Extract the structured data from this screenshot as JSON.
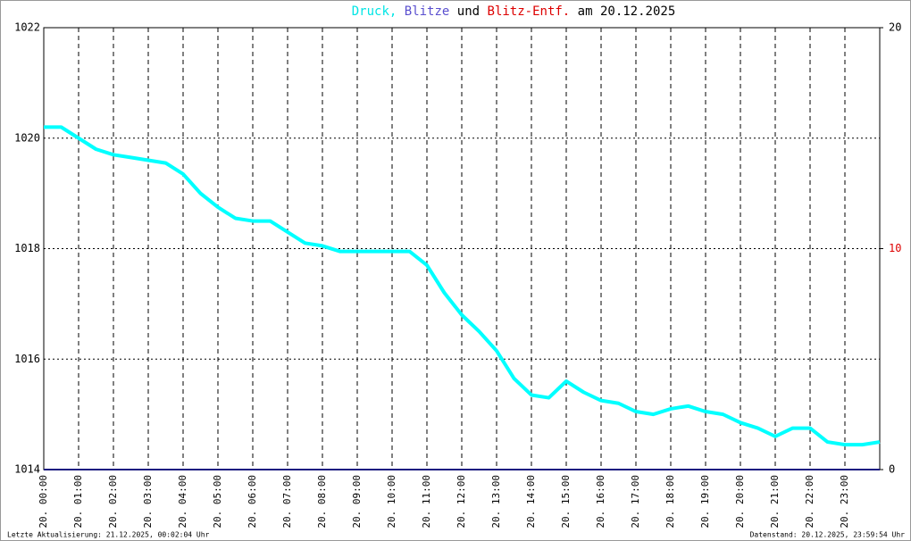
{
  "chart_data": {
    "type": "line",
    "title_parts": [
      {
        "text": "Druck,",
        "color": "#00e5e5"
      },
      {
        "text": "Blitze",
        "color": "#5a4fcf"
      },
      {
        "text": "und",
        "color": "#000000"
      },
      {
        "text": "Blitz-Entf.",
        "color": "#dd0000"
      },
      {
        "text": "am 20.12.2025",
        "color": "#000000"
      }
    ],
    "xlim": [
      0,
      24
    ],
    "xticks": [
      {
        "value": 0,
        "label": "20. 00:00"
      },
      {
        "value": 1,
        "label": "20. 01:00"
      },
      {
        "value": 2,
        "label": "20. 02:00"
      },
      {
        "value": 3,
        "label": "20. 03:00"
      },
      {
        "value": 4,
        "label": "20. 04:00"
      },
      {
        "value": 5,
        "label": "20. 05:00"
      },
      {
        "value": 6,
        "label": "20. 06:00"
      },
      {
        "value": 7,
        "label": "20. 07:00"
      },
      {
        "value": 8,
        "label": "20. 08:00"
      },
      {
        "value": 9,
        "label": "20. 09:00"
      },
      {
        "value": 10,
        "label": "20. 10:00"
      },
      {
        "value": 11,
        "label": "20. 11:00"
      },
      {
        "value": 12,
        "label": "20. 12:00"
      },
      {
        "value": 13,
        "label": "20. 13:00"
      },
      {
        "value": 14,
        "label": "20. 14:00"
      },
      {
        "value": 15,
        "label": "20. 15:00"
      },
      {
        "value": 16,
        "label": "20. 16:00"
      },
      {
        "value": 17,
        "label": "20. 17:00"
      },
      {
        "value": 18,
        "label": "20. 18:00"
      },
      {
        "value": 19,
        "label": "20. 19:00"
      },
      {
        "value": 20,
        "label": "20. 20:00"
      },
      {
        "value": 21,
        "label": "20. 21:00"
      },
      {
        "value": 22,
        "label": "20. 22:00"
      },
      {
        "value": 23,
        "label": "20. 23:00"
      }
    ],
    "ylim": [
      1014,
      1022
    ],
    "yticks": [
      1014,
      1016,
      1018,
      1020,
      1022
    ],
    "y2lim": [
      0,
      20
    ],
    "y2ticks": [
      0,
      10,
      20
    ],
    "grid": true,
    "series": [
      {
        "color": "#00ffff",
        "x": [
          0,
          0.5,
          1,
          1.5,
          2,
          2.5,
          3,
          3.5,
          4,
          4.5,
          5,
          5.5,
          6,
          6.5,
          7,
          7.5,
          8,
          8.5,
          9,
          9.5,
          10,
          10.5,
          11,
          11.5,
          12,
          12.5,
          13,
          13.5,
          14,
          14.5,
          15,
          15.5,
          16,
          16.5,
          17,
          17.5,
          18,
          18.5,
          19,
          19.5,
          20,
          20.5,
          21,
          21.5,
          22,
          22.5,
          23,
          23.5,
          24
        ],
        "values": [
          1020.2,
          1020.2,
          1020.0,
          1019.8,
          1019.7,
          1019.65,
          1019.6,
          1019.55,
          1019.35,
          1019.0,
          1018.75,
          1018.55,
          1018.5,
          1018.5,
          1018.3,
          1018.1,
          1018.05,
          1017.95,
          1017.95,
          1017.95,
          1017.95,
          1017.95,
          1017.7,
          1017.2,
          1016.8,
          1016.5,
          1016.15,
          1015.65,
          1015.35,
          1015.3,
          1015.6,
          1015.4,
          1015.25,
          1015.2,
          1015.05,
          1015.0,
          1015.1,
          1015.15,
          1015.05,
          1015.0,
          1014.85,
          1014.75,
          1014.6,
          1014.75,
          1014.75,
          1014.5,
          1014.45,
          1014.45,
          1014.5
        ]
      },
      {
        "color": "#1a1a80",
        "axis": "y2",
        "x": [
          0,
          24
        ],
        "values": [
          0,
          0
        ]
      }
    ],
    "footer_left": "Letzte Aktualisierung: 21.12.2025, 00:02:04 Uhr",
    "footer_right": "Datenstand: 20.12.2025, 23:59:54 Uhr"
  }
}
